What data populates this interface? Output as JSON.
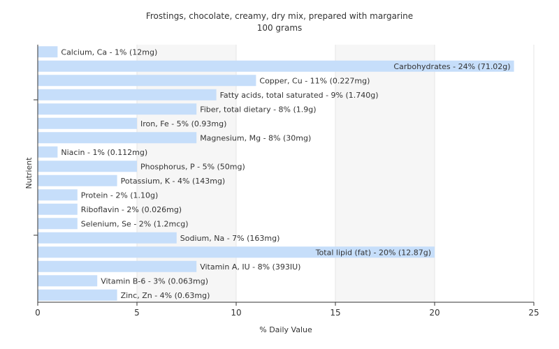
{
  "chart_data": {
    "type": "bar",
    "orientation": "horizontal",
    "title": "Frostings, chocolate, creamy, dry mix, prepared with margarine",
    "subtitle": "100 grams",
    "xlabel": "% Daily Value",
    "ylabel": "Nutrient",
    "xlim": [
      0,
      25
    ],
    "xticks": [
      0,
      5,
      10,
      15,
      20,
      25
    ],
    "grid": true,
    "bar_color": "#c6defa",
    "categories": [
      "Calcium, Ca",
      "Carbohydrates",
      "Copper, Cu",
      "Fatty acids, total saturated",
      "Fiber, total dietary",
      "Iron, Fe",
      "Magnesium, Mg",
      "Niacin",
      "Phosphorus, P",
      "Potassium, K",
      "Protein",
      "Riboflavin",
      "Selenium, Se",
      "Sodium, Na",
      "Total lipid (fat)",
      "Vitamin A, IU",
      "Vitamin B-6",
      "Zinc, Zn"
    ],
    "values": [
      1,
      24,
      11,
      9,
      8,
      5,
      8,
      1,
      5,
      4,
      2,
      2,
      2,
      7,
      20,
      8,
      3,
      4
    ],
    "labels": [
      "Calcium, Ca - 1% (12mg)",
      "Carbohydrates - 24% (71.02g)",
      "Copper, Cu - 11% (0.227mg)",
      "Fatty acids, total saturated - 9% (1.740g)",
      "Fiber, total dietary - 8% (1.9g)",
      "Iron, Fe - 5% (0.93mg)",
      "Magnesium, Mg - 8% (30mg)",
      "Niacin - 1% (0.112mg)",
      "Phosphorus, P - 5% (50mg)",
      "Potassium, K - 4% (143mg)",
      "Protein - 2% (1.10g)",
      "Riboflavin - 2% (0.026mg)",
      "Selenium, Se - 2% (1.2mcg)",
      "Sodium, Na - 7% (163mg)",
      "Total lipid (fat) - 20% (12.87g)",
      "Vitamin A, IU - 8% (393IU)",
      "Vitamin B-6 - 3% (0.063mg)",
      "Zinc, Zn - 4% (0.63mg)"
    ]
  }
}
